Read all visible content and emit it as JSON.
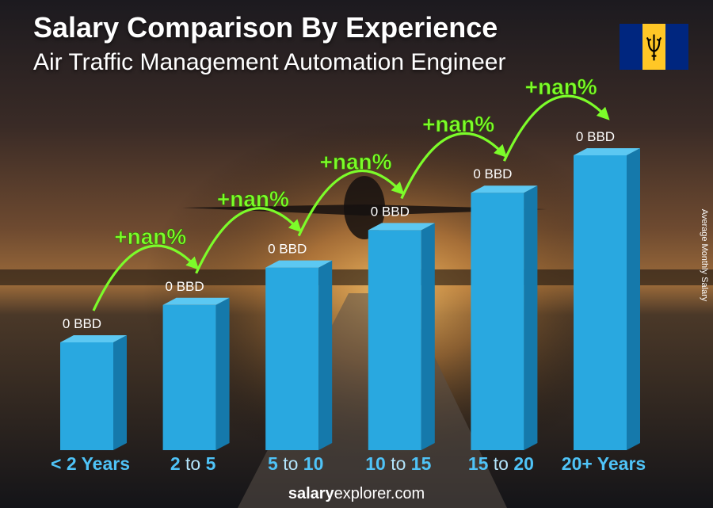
{
  "header": {
    "title": "Salary Comparison By Experience",
    "subtitle": "Air Traffic Management Automation Engineer"
  },
  "footer": {
    "brand_bold": "salary",
    "brand_rest": "explorer.com"
  },
  "colors": {
    "bar_front": "#29a8e0",
    "bar_side": "#1579ab",
    "bar_top": "#5cc8f2",
    "growth": "#7CFC2A",
    "flag_blue": "#00267F",
    "flag_gold": "#FFC726"
  },
  "icons": {
    "flag": "barbados-flag-icon"
  },
  "chart_data": {
    "type": "bar",
    "title": "Salary Comparison By Experience",
    "subtitle": "Air Traffic Management Automation Engineer",
    "ylabel": "Average Monthly Salary",
    "xlabel": "",
    "categories": [
      {
        "a": "< 2 Years",
        "mid": "",
        "b": ""
      },
      {
        "a": "2",
        "mid": " to ",
        "b": "5"
      },
      {
        "a": "5",
        "mid": " to ",
        "b": "10"
      },
      {
        "a": "10",
        "mid": " to ",
        "b": "15"
      },
      {
        "a": "15",
        "mid": " to ",
        "b": "20"
      },
      {
        "a": "20+ Years",
        "mid": "",
        "b": ""
      }
    ],
    "values": [
      0,
      0,
      0,
      0,
      0,
      0
    ],
    "value_labels": [
      "0 BBD",
      "0 BBD",
      "0 BBD",
      "0 BBD",
      "0 BBD",
      "0 BBD"
    ],
    "growth_labels": [
      "+nan%",
      "+nan%",
      "+nan%",
      "+nan%",
      "+nan%"
    ],
    "grid": false
  }
}
